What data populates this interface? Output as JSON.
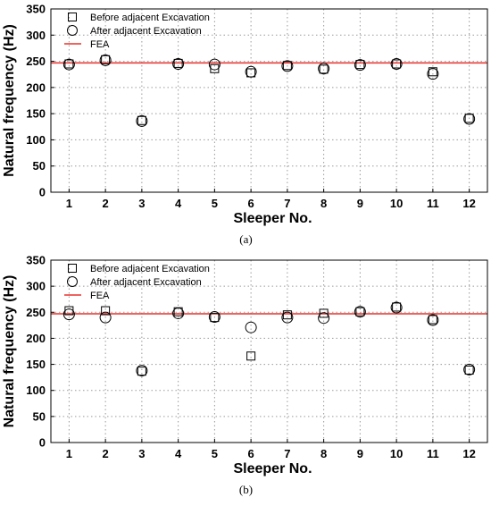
{
  "chart_data": [
    {
      "type": "scatter",
      "caption": "(a)",
      "xlabel": "Sleeper No.",
      "ylabel": "Natural frequency (Hz)",
      "x": [
        1,
        2,
        3,
        4,
        5,
        6,
        7,
        8,
        9,
        10,
        11,
        12
      ],
      "xlim": [
        0.5,
        12.5
      ],
      "ylim": [
        0,
        350
      ],
      "yticks": [
        0,
        50,
        100,
        150,
        200,
        250,
        300,
        350
      ],
      "grid": true,
      "legend_position": "top-left",
      "series": [
        {
          "name": "Before adjacent Excavation",
          "marker": "square",
          "values": [
            245,
            253,
            137,
            246,
            236,
            228,
            242,
            235,
            244,
            245,
            230,
            141
          ]
        },
        {
          "name": "After adjacent Excavation",
          "marker": "circle",
          "values": [
            244,
            252,
            136,
            245,
            244,
            230,
            241,
            236,
            243,
            245,
            226,
            140
          ]
        }
      ],
      "reference_line": {
        "name": "FEA",
        "value": 247,
        "color": "#e8302c"
      }
    },
    {
      "type": "scatter",
      "caption": "(b)",
      "xlabel": "Sleeper No.",
      "ylabel": "Natural frequency (Hz)",
      "x": [
        1,
        2,
        3,
        4,
        5,
        6,
        7,
        8,
        9,
        10,
        11,
        12
      ],
      "xlim": [
        0.5,
        12.5
      ],
      "ylim": [
        0,
        350
      ],
      "yticks": [
        0,
        50,
        100,
        150,
        200,
        250,
        300,
        350
      ],
      "grid": true,
      "legend_position": "top-left",
      "series": [
        {
          "name": "Before adjacent Excavation",
          "marker": "square",
          "values": [
            253,
            253,
            137,
            251,
            240,
            166,
            245,
            248,
            251,
            260,
            236,
            139
          ]
        },
        {
          "name": "After adjacent Excavation",
          "marker": "circle",
          "values": [
            246,
            240,
            138,
            248,
            241,
            221,
            240,
            239,
            251,
            259,
            235,
            140
          ]
        }
      ],
      "reference_line": {
        "name": "FEA",
        "value": 247,
        "color": "#e8302c"
      }
    }
  ]
}
